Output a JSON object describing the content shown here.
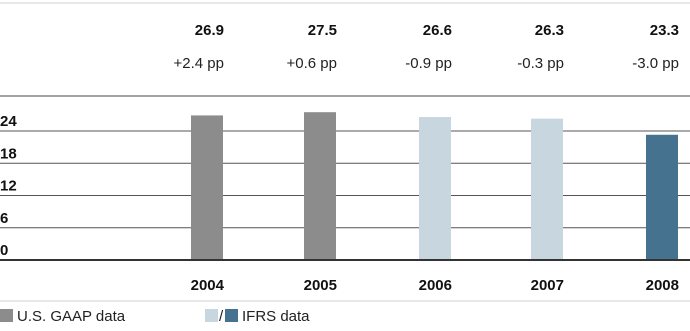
{
  "chart_data": {
    "type": "bar",
    "categories": [
      "2004",
      "2005",
      "2006",
      "2007",
      "2008"
    ],
    "values": [
      26.9,
      27.5,
      26.6,
      26.3,
      23.3
    ],
    "changes": [
      "+2.4 pp",
      "+0.6 pp",
      "-0.9 pp",
      "-0.3 pp",
      "-3.0 pp"
    ],
    "y_ticks": [
      "24",
      "18",
      "12",
      "6",
      "0"
    ],
    "y_tick_values": [
      24,
      18,
      12,
      6,
      0
    ],
    "ylim": [
      0,
      28
    ],
    "bar_colors": [
      "#8c8c8c",
      "#8c8c8c",
      "#c8d7df",
      "#c8d7df",
      "#45738f"
    ],
    "grid": true,
    "legend": {
      "placement": "bottom-left",
      "gaap_label": "U.S. GAAP data",
      "ifrs_separator": "/",
      "ifrs_label": "IFRS data",
      "gaap_color": "#8c8c8c",
      "ifrs_light_color": "#c8d7df",
      "ifrs_dark_color": "#45738f"
    }
  }
}
